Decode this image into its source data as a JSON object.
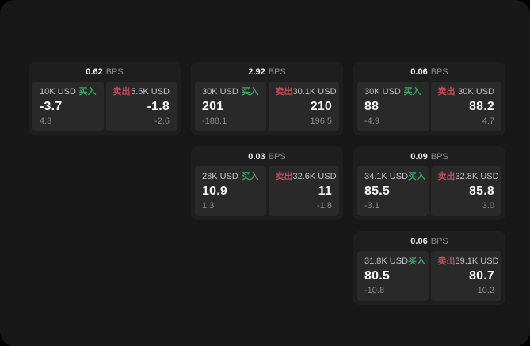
{
  "labels": {
    "bps": "BPS",
    "buy": "买入",
    "sell": "卖出"
  },
  "colors": {
    "buy_green": "#3da263",
    "sell_red": "#c04a57",
    "window_bg": "#181818",
    "card_bg": "#1e1e1e",
    "panel_bg": "#292929"
  },
  "cards": [
    {
      "bps": "0.62",
      "buy": {
        "amount": "10K USD",
        "main": "-3.7",
        "sub": "4.3"
      },
      "sell": {
        "amount": "5.5K USD",
        "main": "-1.8",
        "sub": "-2.6"
      }
    },
    {
      "bps": "2.92",
      "buy": {
        "amount": "30K USD",
        "main": "201",
        "sub": "-188.1"
      },
      "sell": {
        "amount": "30.1K USD",
        "main": "210",
        "sub": "196.5"
      }
    },
    {
      "bps": "0.06",
      "buy": {
        "amount": "30K USD",
        "main": "88",
        "sub": "-4.9"
      },
      "sell": {
        "amount": "30K USD",
        "main": "88.2",
        "sub": "4.7"
      }
    },
    {
      "bps": "0.03",
      "buy": {
        "amount": "28K USD",
        "main": "10.9",
        "sub": "1.3"
      },
      "sell": {
        "amount": "32.6K USD",
        "main": "11",
        "sub": "-1.8"
      }
    },
    {
      "bps": "0.09",
      "buy": {
        "amount": "34.1K USD",
        "main": "85.5",
        "sub": "-3.1"
      },
      "sell": {
        "amount": "32.8K USD",
        "main": "85.8",
        "sub": "3.0"
      }
    },
    {
      "bps": "0.06",
      "buy": {
        "amount": "31.8K USD",
        "main": "80.5",
        "sub": "-10.8"
      },
      "sell": {
        "amount": "39.1K USD",
        "main": "80.7",
        "sub": "10.2"
      }
    }
  ]
}
